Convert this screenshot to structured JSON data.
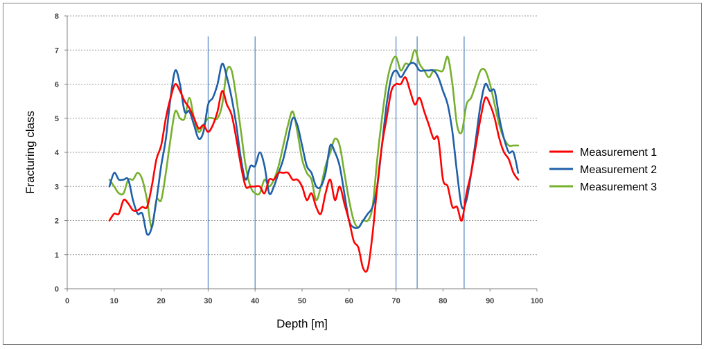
{
  "chart_data": {
    "type": "line",
    "xlabel": "Depth [m]",
    "ylabel": "Fracturing class",
    "xlim": [
      0,
      100
    ],
    "ylim": [
      0,
      8
    ],
    "xticks": [
      0,
      10,
      20,
      30,
      40,
      50,
      60,
      70,
      80,
      90,
      100
    ],
    "yticks": [
      0,
      1,
      2,
      3,
      4,
      5,
      6,
      7,
      8
    ],
    "grid": "horizontal dashed",
    "legend": "right",
    "vertical_markers": [
      30,
      40,
      70,
      74.5,
      84.5
    ],
    "marker_color": "#4f81bd",
    "series": [
      {
        "name": "Measurement 1",
        "color": "#ff0000",
        "points": [
          [
            9,
            2.0
          ],
          [
            10,
            2.2
          ],
          [
            11,
            2.2
          ],
          [
            12,
            2.6
          ],
          [
            13,
            2.5
          ],
          [
            14,
            2.3
          ],
          [
            15,
            2.3
          ],
          [
            16,
            2.4
          ],
          [
            17,
            2.4
          ],
          [
            18,
            3.0
          ],
          [
            19,
            3.8
          ],
          [
            20,
            4.2
          ],
          [
            21,
            5.0
          ],
          [
            22,
            5.6
          ],
          [
            23,
            6.0
          ],
          [
            24,
            5.8
          ],
          [
            25,
            5.5
          ],
          [
            26,
            5.3
          ],
          [
            27,
            5.0
          ],
          [
            28,
            4.7
          ],
          [
            29,
            4.8
          ],
          [
            30,
            4.6
          ],
          [
            31,
            4.8
          ],
          [
            32,
            5.2
          ],
          [
            33,
            5.8
          ],
          [
            34,
            5.4
          ],
          [
            35,
            5.1
          ],
          [
            36,
            4.4
          ],
          [
            37,
            3.6
          ],
          [
            38,
            3.0
          ],
          [
            39,
            3.0
          ],
          [
            40,
            3.0
          ],
          [
            41,
            3.0
          ],
          [
            42,
            2.8
          ],
          [
            43,
            3.2
          ],
          [
            44,
            3.2
          ],
          [
            45,
            3.4
          ],
          [
            46,
            3.4
          ],
          [
            47,
            3.4
          ],
          [
            48,
            3.2
          ],
          [
            49,
            3.2
          ],
          [
            50,
            3.0
          ],
          [
            51,
            2.6
          ],
          [
            52,
            2.8
          ],
          [
            53,
            2.4
          ],
          [
            54,
            2.2
          ],
          [
            55,
            2.8
          ],
          [
            56,
            3.2
          ],
          [
            57,
            2.6
          ],
          [
            58,
            3.0
          ],
          [
            59,
            2.5
          ],
          [
            60,
            2.0
          ],
          [
            61,
            1.4
          ],
          [
            62,
            1.2
          ],
          [
            63,
            0.6
          ],
          [
            64,
            0.6
          ],
          [
            65,
            1.6
          ],
          [
            66,
            3.0
          ],
          [
            67,
            4.2
          ],
          [
            68,
            5.0
          ],
          [
            69,
            5.8
          ],
          [
            70,
            6.0
          ],
          [
            71,
            6.0
          ],
          [
            72,
            6.2
          ],
          [
            73,
            5.8
          ],
          [
            74,
            5.4
          ],
          [
            75,
            5.6
          ],
          [
            76,
            5.2
          ],
          [
            77,
            4.8
          ],
          [
            78,
            4.4
          ],
          [
            79,
            4.4
          ],
          [
            80,
            3.2
          ],
          [
            81,
            3.0
          ],
          [
            82,
            2.4
          ],
          [
            83,
            2.4
          ],
          [
            84,
            2.0
          ],
          [
            85,
            2.8
          ],
          [
            86,
            3.4
          ],
          [
            87,
            4.2
          ],
          [
            88,
            5.0
          ],
          [
            89,
            5.6
          ],
          [
            90,
            5.4
          ],
          [
            91,
            5.0
          ],
          [
            92,
            4.4
          ],
          [
            93,
            4.0
          ],
          [
            94,
            3.8
          ],
          [
            95,
            3.4
          ],
          [
            96,
            3.2
          ]
        ]
      },
      {
        "name": "Measurement 2",
        "color": "#1f5fa8",
        "points": [
          [
            9,
            3.0
          ],
          [
            10,
            3.4
          ],
          [
            11,
            3.2
          ],
          [
            12,
            3.2
          ],
          [
            13,
            3.2
          ],
          [
            14,
            2.6
          ],
          [
            15,
            2.2
          ],
          [
            16,
            2.2
          ],
          [
            17,
            1.6
          ],
          [
            18,
            1.8
          ],
          [
            19,
            2.6
          ],
          [
            20,
            3.6
          ],
          [
            21,
            4.4
          ],
          [
            22,
            5.6
          ],
          [
            23,
            6.4
          ],
          [
            24,
            6.0
          ],
          [
            25,
            5.2
          ],
          [
            26,
            5.2
          ],
          [
            27,
            4.8
          ],
          [
            28,
            4.4
          ],
          [
            29,
            4.6
          ],
          [
            30,
            5.4
          ],
          [
            31,
            5.6
          ],
          [
            32,
            6.0
          ],
          [
            33,
            6.6
          ],
          [
            34,
            6.2
          ],
          [
            35,
            5.6
          ],
          [
            36,
            4.8
          ],
          [
            37,
            3.8
          ],
          [
            38,
            3.2
          ],
          [
            39,
            3.6
          ],
          [
            40,
            3.6
          ],
          [
            41,
            4.0
          ],
          [
            42,
            3.6
          ],
          [
            43,
            2.8
          ],
          [
            44,
            3.0
          ],
          [
            45,
            3.4
          ],
          [
            46,
            3.8
          ],
          [
            47,
            4.4
          ],
          [
            48,
            5.0
          ],
          [
            49,
            4.8
          ],
          [
            50,
            4.2
          ],
          [
            51,
            3.6
          ],
          [
            52,
            3.4
          ],
          [
            53,
            3.0
          ],
          [
            54,
            3.0
          ],
          [
            55,
            3.4
          ],
          [
            56,
            4.2
          ],
          [
            57,
            4.0
          ],
          [
            58,
            3.6
          ],
          [
            59,
            2.8
          ],
          [
            60,
            2.0
          ],
          [
            61,
            1.8
          ],
          [
            62,
            1.8
          ],
          [
            63,
            2.0
          ],
          [
            64,
            2.2
          ],
          [
            65,
            2.4
          ],
          [
            66,
            3.0
          ],
          [
            67,
            4.2
          ],
          [
            68,
            5.4
          ],
          [
            69,
            6.2
          ],
          [
            70,
            6.4
          ],
          [
            71,
            6.2
          ],
          [
            72,
            6.4
          ],
          [
            73,
            6.6
          ],
          [
            74,
            6.6
          ],
          [
            75,
            6.4
          ],
          [
            76,
            6.4
          ],
          [
            77,
            6.4
          ],
          [
            78,
            6.4
          ],
          [
            79,
            6.2
          ],
          [
            80,
            5.8
          ],
          [
            81,
            5.4
          ],
          [
            82,
            4.6
          ],
          [
            83,
            3.4
          ],
          [
            84,
            2.4
          ],
          [
            85,
            2.6
          ],
          [
            86,
            3.4
          ],
          [
            87,
            4.4
          ],
          [
            88,
            5.4
          ],
          [
            89,
            6.0
          ],
          [
            90,
            5.8
          ],
          [
            91,
            5.8
          ],
          [
            92,
            5.0
          ],
          [
            93,
            4.4
          ],
          [
            94,
            4.0
          ],
          [
            95,
            4.0
          ],
          [
            96,
            3.4
          ]
        ]
      },
      {
        "name": "Measurement 3",
        "color": "#77b02e",
        "points": [
          [
            9,
            3.2
          ],
          [
            10,
            3.0
          ],
          [
            11,
            2.8
          ],
          [
            12,
            2.8
          ],
          [
            13,
            3.2
          ],
          [
            14,
            3.2
          ],
          [
            15,
            3.4
          ],
          [
            16,
            3.2
          ],
          [
            17,
            2.6
          ],
          [
            18,
            1.8
          ],
          [
            19,
            2.6
          ],
          [
            20,
            2.6
          ],
          [
            21,
            3.4
          ],
          [
            22,
            4.4
          ],
          [
            23,
            5.2
          ],
          [
            24,
            5.0
          ],
          [
            25,
            5.0
          ],
          [
            26,
            5.6
          ],
          [
            27,
            5.0
          ],
          [
            28,
            4.6
          ],
          [
            29,
            4.8
          ],
          [
            30,
            5.0
          ],
          [
            31,
            5.0
          ],
          [
            32,
            5.0
          ],
          [
            33,
            5.4
          ],
          [
            34,
            6.4
          ],
          [
            35,
            6.4
          ],
          [
            36,
            5.6
          ],
          [
            37,
            4.6
          ],
          [
            38,
            3.6
          ],
          [
            39,
            3.0
          ],
          [
            40,
            2.8
          ],
          [
            41,
            2.8
          ],
          [
            42,
            3.2
          ],
          [
            43,
            3.0
          ],
          [
            44,
            3.2
          ],
          [
            45,
            3.6
          ],
          [
            46,
            4.2
          ],
          [
            47,
            4.8
          ],
          [
            48,
            5.2
          ],
          [
            49,
            4.6
          ],
          [
            50,
            3.8
          ],
          [
            51,
            3.4
          ],
          [
            52,
            3.2
          ],
          [
            53,
            2.6
          ],
          [
            54,
            3.0
          ],
          [
            55,
            3.6
          ],
          [
            56,
            4.0
          ],
          [
            57,
            4.4
          ],
          [
            58,
            4.2
          ],
          [
            59,
            3.4
          ],
          [
            60,
            2.6
          ],
          [
            61,
            2.0
          ],
          [
            62,
            1.8
          ],
          [
            63,
            2.0
          ],
          [
            64,
            2.0
          ],
          [
            65,
            2.4
          ],
          [
            66,
            3.8
          ],
          [
            67,
            5.0
          ],
          [
            68,
            6.0
          ],
          [
            69,
            6.6
          ],
          [
            70,
            6.8
          ],
          [
            71,
            6.4
          ],
          [
            72,
            6.6
          ],
          [
            73,
            6.6
          ],
          [
            74,
            7.0
          ],
          [
            75,
            6.6
          ],
          [
            76,
            6.4
          ],
          [
            77,
            6.2
          ],
          [
            78,
            6.4
          ],
          [
            79,
            6.4
          ],
          [
            80,
            6.4
          ],
          [
            81,
            6.8
          ],
          [
            82,
            6.0
          ],
          [
            83,
            4.8
          ],
          [
            84,
            4.6
          ],
          [
            85,
            5.4
          ],
          [
            86,
            5.6
          ],
          [
            87,
            6.0
          ],
          [
            88,
            6.4
          ],
          [
            89,
            6.4
          ],
          [
            90,
            6.0
          ],
          [
            91,
            5.4
          ],
          [
            92,
            4.8
          ],
          [
            93,
            4.4
          ],
          [
            94,
            4.2
          ],
          [
            95,
            4.2
          ],
          [
            96,
            4.2
          ]
        ]
      }
    ]
  }
}
